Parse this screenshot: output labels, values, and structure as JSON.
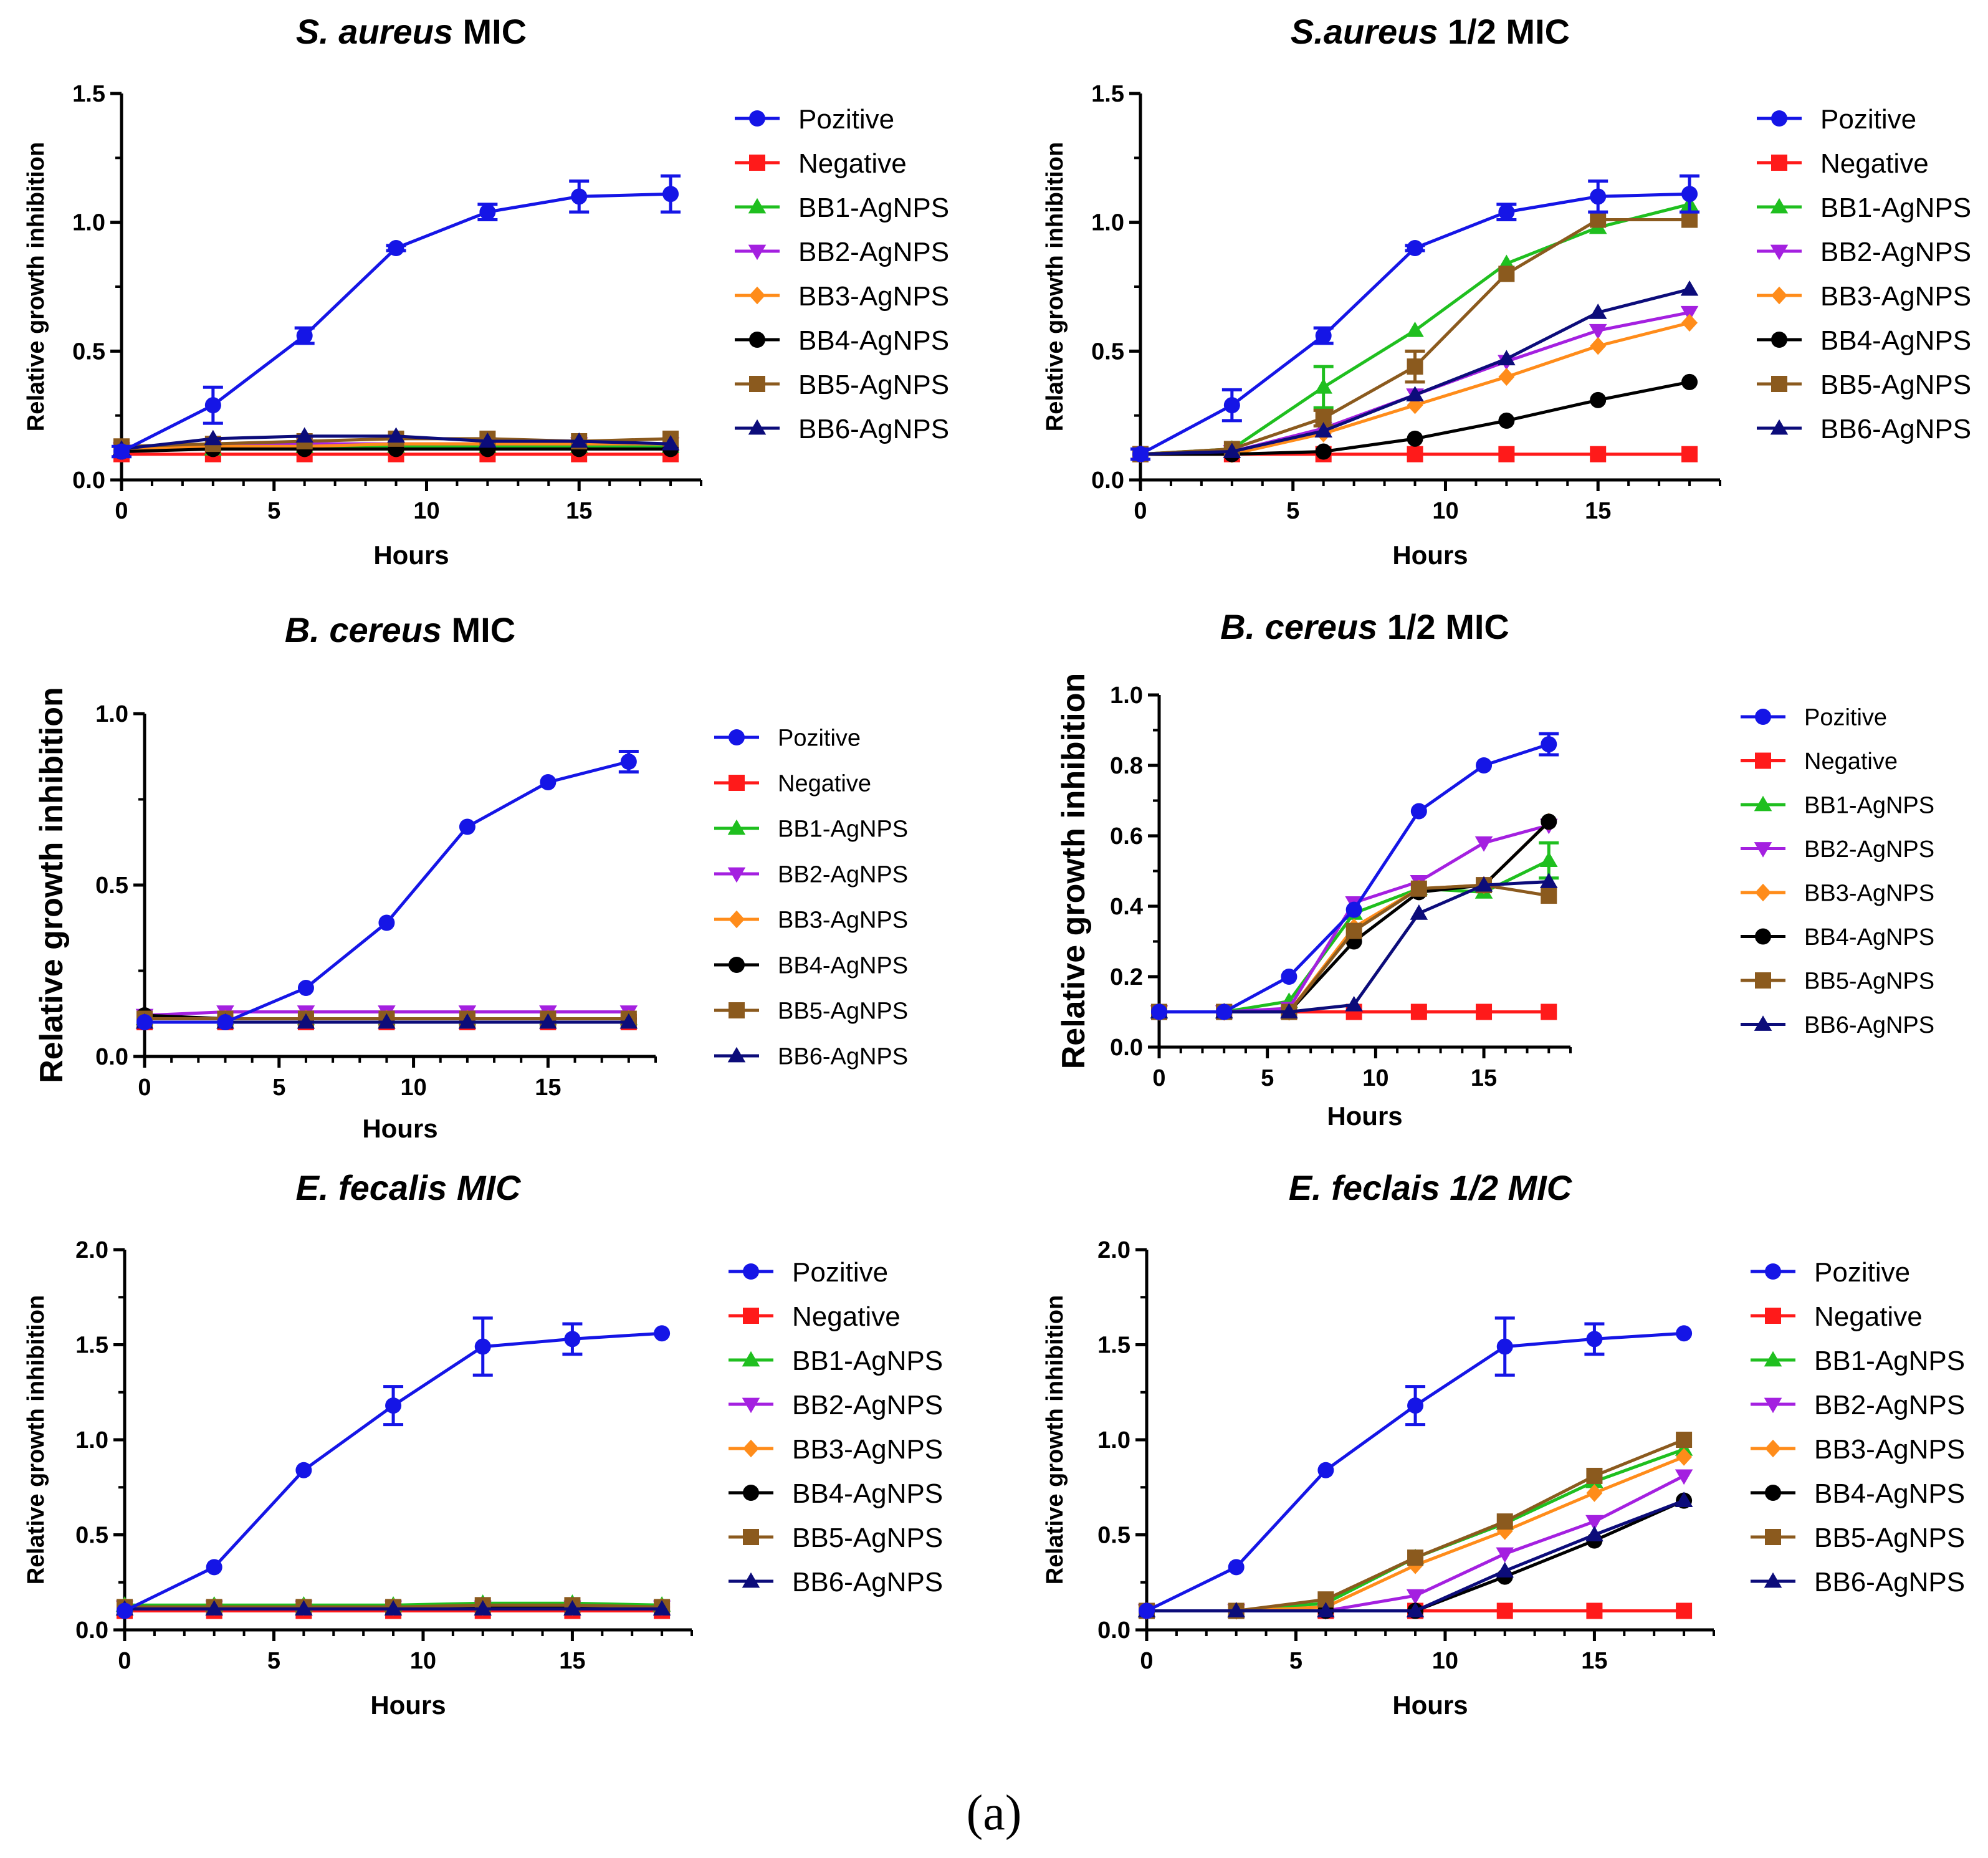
{
  "figure": {
    "caption": "(a)",
    "colors": {
      "Pozitive": "#1515e6",
      "Negative": "#ff1a1a",
      "BB1-AgNPS": "#1fbf1f",
      "BB2-AgNPS": "#a420e0",
      "BB3-AgNPS": "#ff8c1a",
      "BB4-AgNPS": "#000000",
      "BB5-AgNPS": "#8b5a1e",
      "BB6-AgNPS": "#0c0c7a"
    },
    "markers": {
      "Pozitive": "circle",
      "Negative": "square",
      "BB1-AgNPS": "triangle-up",
      "BB2-AgNPS": "triangle-down",
      "BB3-AgNPS": "diamond",
      "BB4-AgNPS": "circle",
      "BB5-AgNPS": "square",
      "BB6-AgNPS": "triangle-up"
    }
  },
  "chart_data": [
    {
      "type": "line",
      "title_italic": "S. aureus",
      "title_rest": " MIC",
      "xlabel": "Hours",
      "ylabel": "Relative growth inhibition",
      "xlim": [
        0,
        19
      ],
      "ylim": [
        0,
        1.5
      ],
      "xticks": [
        0,
        5,
        10,
        15
      ],
      "yticks": [
        0.0,
        0.5,
        1.0,
        1.5
      ],
      "ytick_labels": [
        "0.0",
        "0.5",
        "1.0",
        "1.5"
      ],
      "x": [
        0,
        3,
        6,
        9,
        12,
        15,
        18
      ],
      "series": [
        {
          "name": "Pozitive",
          "values": [
            0.11,
            0.29,
            0.56,
            0.9,
            1.04,
            1.1,
            1.11
          ],
          "errors": [
            0.02,
            0.07,
            0.03,
            0.01,
            0.03,
            0.06,
            0.07
          ]
        },
        {
          "name": "Negative",
          "values": [
            0.1,
            0.1,
            0.1,
            0.1,
            0.1,
            0.1,
            0.1
          ]
        },
        {
          "name": "BB1-AgNPS",
          "values": [
            0.12,
            0.12,
            0.13,
            0.13,
            0.13,
            0.13,
            0.13
          ]
        },
        {
          "name": "BB2-AgNPS",
          "values": [
            0.12,
            0.13,
            0.14,
            0.14,
            0.14,
            0.14,
            0.14
          ]
        },
        {
          "name": "BB3-AgNPS",
          "values": [
            0.12,
            0.13,
            0.13,
            0.14,
            0.14,
            0.14,
            0.14
          ]
        },
        {
          "name": "BB4-AgNPS",
          "values": [
            0.11,
            0.12,
            0.12,
            0.12,
            0.12,
            0.12,
            0.12
          ]
        },
        {
          "name": "BB5-AgNPS",
          "values": [
            0.13,
            0.14,
            0.15,
            0.16,
            0.16,
            0.15,
            0.16
          ]
        },
        {
          "name": "BB6-AgNPS",
          "values": [
            0.12,
            0.16,
            0.17,
            0.17,
            0.15,
            0.15,
            0.14
          ]
        }
      ]
    },
    {
      "type": "line",
      "title_italic": "S.aureus",
      "title_rest": " 1/2 MIC",
      "xlabel": "Hours",
      "ylabel": "Relative growth inhibition",
      "xlim": [
        0,
        19
      ],
      "ylim": [
        0,
        1.5
      ],
      "xticks": [
        0,
        5,
        10,
        15
      ],
      "yticks": [
        0.0,
        0.5,
        1.0,
        1.5
      ],
      "ytick_labels": [
        "0.0",
        "0.5",
        "1.0",
        "1.5"
      ],
      "x": [
        0,
        3,
        6,
        9,
        12,
        15,
        18
      ],
      "series": [
        {
          "name": "Pozitive",
          "values": [
            0.1,
            0.29,
            0.56,
            0.9,
            1.04,
            1.1,
            1.11
          ],
          "errors": [
            0.02,
            0.06,
            0.03,
            0.01,
            0.03,
            0.06,
            0.07
          ]
        },
        {
          "name": "Negative",
          "values": [
            0.1,
            0.1,
            0.1,
            0.1,
            0.1,
            0.1,
            0.1
          ]
        },
        {
          "name": "BB1-AgNPS",
          "values": [
            0.1,
            0.12,
            0.36,
            0.58,
            0.84,
            0.98,
            1.07
          ],
          "errors": [
            0,
            0,
            0.08,
            0,
            0,
            0,
            0
          ]
        },
        {
          "name": "BB2-AgNPS",
          "values": [
            0.1,
            0.11,
            0.2,
            0.33,
            0.46,
            0.58,
            0.65
          ]
        },
        {
          "name": "BB3-AgNPS",
          "values": [
            0.1,
            0.1,
            0.18,
            0.29,
            0.4,
            0.52,
            0.61
          ]
        },
        {
          "name": "BB4-AgNPS",
          "values": [
            0.1,
            0.1,
            0.11,
            0.16,
            0.23,
            0.31,
            0.38
          ]
        },
        {
          "name": "BB5-AgNPS",
          "values": [
            0.1,
            0.12,
            0.24,
            0.44,
            0.8,
            1.01,
            1.01
          ],
          "errors": [
            0,
            0,
            0.03,
            0.06,
            0,
            0,
            0
          ]
        },
        {
          "name": "BB6-AgNPS",
          "values": [
            0.1,
            0.11,
            0.19,
            0.33,
            0.47,
            0.65,
            0.74
          ]
        }
      ]
    },
    {
      "type": "line",
      "title_italic": "B. cereus",
      "title_rest": " MIC",
      "xlabel": "Hours",
      "ylabel": "Relative growth inhibition",
      "xlim": [
        0,
        19
      ],
      "ylim": [
        0,
        1.0
      ],
      "xticks": [
        0,
        5,
        10,
        15
      ],
      "yticks": [
        0.0,
        0.5,
        1.0
      ],
      "ytick_labels": [
        "0.0",
        "0.5",
        "1.0"
      ],
      "x": [
        0,
        3,
        6,
        9,
        12,
        15,
        18
      ],
      "series": [
        {
          "name": "Pozitive",
          "values": [
            0.1,
            0.1,
            0.2,
            0.39,
            0.67,
            0.8,
            0.86
          ],
          "errors": [
            0,
            0,
            0,
            0,
            0,
            0,
            0.03
          ]
        },
        {
          "name": "Negative",
          "values": [
            0.1,
            0.1,
            0.1,
            0.1,
            0.1,
            0.1,
            0.1
          ]
        },
        {
          "name": "BB1-AgNPS",
          "values": [
            0.11,
            0.11,
            0.11,
            0.11,
            0.11,
            0.11,
            0.11
          ]
        },
        {
          "name": "BB2-AgNPS",
          "values": [
            0.12,
            0.13,
            0.13,
            0.13,
            0.13,
            0.13,
            0.13
          ]
        },
        {
          "name": "BB3-AgNPS",
          "values": [
            0.11,
            0.11,
            0.11,
            0.11,
            0.11,
            0.11,
            0.11
          ]
        },
        {
          "name": "BB4-AgNPS",
          "values": [
            0.12,
            0.11,
            0.11,
            0.11,
            0.11,
            0.11,
            0.11
          ]
        },
        {
          "name": "BB5-AgNPS",
          "values": [
            0.11,
            0.11,
            0.11,
            0.11,
            0.11,
            0.11,
            0.11
          ]
        },
        {
          "name": "BB6-AgNPS",
          "values": [
            0.1,
            0.1,
            0.1,
            0.1,
            0.1,
            0.1,
            0.1
          ]
        }
      ]
    },
    {
      "type": "line",
      "title_italic": "B. cereus",
      "title_rest": " 1/2 MIC",
      "xlabel": "Hours",
      "ylabel": "Relative growth inhibition",
      "xlim": [
        0,
        19
      ],
      "ylim": [
        0,
        1.0
      ],
      "xticks": [
        0,
        5,
        10,
        15
      ],
      "yticks": [
        0.0,
        0.2,
        0.4,
        0.6,
        0.8,
        1.0
      ],
      "ytick_labels": [
        "0.0",
        "0.2",
        "0.4",
        "0.6",
        "0.8",
        "1.0"
      ],
      "x": [
        0,
        3,
        6,
        9,
        12,
        15,
        18
      ],
      "series": [
        {
          "name": "Pozitive",
          "values": [
            0.1,
            0.1,
            0.2,
            0.39,
            0.67,
            0.8,
            0.86
          ],
          "errors": [
            0,
            0,
            0,
            0,
            0,
            0,
            0.03
          ]
        },
        {
          "name": "Negative",
          "values": [
            0.1,
            0.1,
            0.1,
            0.1,
            0.1,
            0.1,
            0.1
          ]
        },
        {
          "name": "BB1-AgNPS",
          "values": [
            0.1,
            0.1,
            0.13,
            0.38,
            0.45,
            0.44,
            0.53
          ],
          "errors": [
            0,
            0,
            0,
            0,
            0,
            0,
            0.05
          ]
        },
        {
          "name": "BB2-AgNPS",
          "values": [
            0.1,
            0.1,
            0.11,
            0.41,
            0.47,
            0.58,
            0.63
          ]
        },
        {
          "name": "BB3-AgNPS",
          "values": [
            0.1,
            0.1,
            0.1,
            0.34,
            0.45,
            0.46,
            0.64
          ]
        },
        {
          "name": "BB4-AgNPS",
          "values": [
            0.1,
            0.1,
            0.1,
            0.3,
            0.44,
            0.46,
            0.64
          ]
        },
        {
          "name": "BB5-AgNPS",
          "values": [
            0.1,
            0.1,
            0.1,
            0.33,
            0.45,
            0.46,
            0.43
          ]
        },
        {
          "name": "BB6-AgNPS",
          "values": [
            0.1,
            0.1,
            0.1,
            0.12,
            0.38,
            0.46,
            0.47
          ]
        }
      ]
    },
    {
      "type": "line",
      "title_italic": "E. fecalis MIC",
      "title_rest": "",
      "xlabel": "Hours",
      "ylabel": "Relative growth inhibition",
      "xlim": [
        0,
        19
      ],
      "ylim": [
        0,
        2.0
      ],
      "xticks": [
        0,
        5,
        10,
        15
      ],
      "yticks": [
        0.0,
        0.5,
        1.0,
        1.5,
        2.0
      ],
      "ytick_labels": [
        "0.0",
        "0.5",
        "1.0",
        "1.5",
        "2.0"
      ],
      "x": [
        0,
        3,
        6,
        9,
        12,
        15,
        18
      ],
      "series": [
        {
          "name": "Pozitive",
          "values": [
            0.1,
            0.33,
            0.84,
            1.18,
            1.49,
            1.53,
            1.56
          ],
          "errors": [
            0,
            0,
            0,
            0.1,
            0.15,
            0.08,
            0
          ]
        },
        {
          "name": "Negative",
          "values": [
            0.1,
            0.1,
            0.1,
            0.1,
            0.1,
            0.1,
            0.1
          ]
        },
        {
          "name": "BB1-AgNPS",
          "values": [
            0.13,
            0.13,
            0.13,
            0.13,
            0.14,
            0.14,
            0.13
          ]
        },
        {
          "name": "BB2-AgNPS",
          "values": [
            0.12,
            0.12,
            0.12,
            0.12,
            0.12,
            0.12,
            0.12
          ]
        },
        {
          "name": "BB3-AgNPS",
          "values": [
            0.12,
            0.12,
            0.12,
            0.12,
            0.12,
            0.12,
            0.12
          ]
        },
        {
          "name": "BB4-AgNPS",
          "values": [
            0.12,
            0.12,
            0.12,
            0.12,
            0.12,
            0.12,
            0.12
          ]
        },
        {
          "name": "BB5-AgNPS",
          "values": [
            0.12,
            0.12,
            0.12,
            0.12,
            0.13,
            0.13,
            0.12
          ]
        },
        {
          "name": "BB6-AgNPS",
          "values": [
            0.11,
            0.11,
            0.11,
            0.11,
            0.11,
            0.11,
            0.11
          ]
        }
      ]
    },
    {
      "type": "line",
      "title_italic": "E. feclais 1/2 MIC",
      "title_rest": "",
      "xlabel": "Hours",
      "ylabel": "Relative growth inhibition",
      "xlim": [
        0,
        19
      ],
      "ylim": [
        0,
        2.0
      ],
      "xticks": [
        0,
        5,
        10,
        15
      ],
      "yticks": [
        0.0,
        0.5,
        1.0,
        1.5,
        2.0
      ],
      "ytick_labels": [
        "0.0",
        "0.5",
        "1.0",
        "1.5",
        "2.0"
      ],
      "x": [
        0,
        3,
        6,
        9,
        12,
        15,
        18
      ],
      "series": [
        {
          "name": "Pozitive",
          "values": [
            0.1,
            0.33,
            0.84,
            1.18,
            1.49,
            1.53,
            1.56
          ],
          "errors": [
            0,
            0,
            0,
            0.1,
            0.15,
            0.08,
            0
          ]
        },
        {
          "name": "Negative",
          "values": [
            0.1,
            0.1,
            0.1,
            0.1,
            0.1,
            0.1,
            0.1
          ]
        },
        {
          "name": "BB1-AgNPS",
          "values": [
            0.1,
            0.1,
            0.14,
            0.38,
            0.56,
            0.78,
            0.95
          ]
        },
        {
          "name": "BB2-AgNPS",
          "values": [
            0.1,
            0.1,
            0.1,
            0.18,
            0.4,
            0.57,
            0.81
          ]
        },
        {
          "name": "BB3-AgNPS",
          "values": [
            0.1,
            0.1,
            0.12,
            0.34,
            0.52,
            0.72,
            0.91
          ]
        },
        {
          "name": "BB4-AgNPS",
          "values": [
            0.1,
            0.1,
            0.1,
            0.1,
            0.28,
            0.47,
            0.68
          ]
        },
        {
          "name": "BB5-AgNPS",
          "values": [
            0.1,
            0.1,
            0.16,
            0.38,
            0.57,
            0.81,
            1.0
          ]
        },
        {
          "name": "BB6-AgNPS",
          "values": [
            0.1,
            0.1,
            0.1,
            0.1,
            0.31,
            0.5,
            0.68
          ]
        }
      ]
    }
  ]
}
